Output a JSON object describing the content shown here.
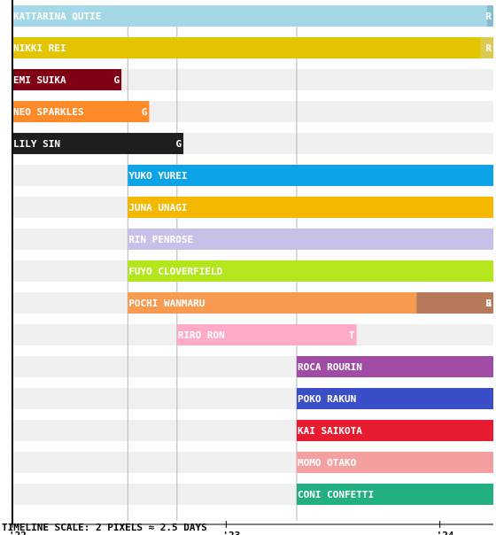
{
  "chart_data": {
    "type": "timeline",
    "x_unit": "month",
    "x_ticks": [
      {
        "label": "'22",
        "value": 2022.0
      },
      {
        "label": "'23",
        "value": 2023.0
      },
      {
        "label": "'24",
        "value": 2024.0
      }
    ],
    "xlim": [
      2022.0,
      2024.25
    ],
    "guides": [
      2022.54,
      2022.77,
      2023.33
    ],
    "rows": [
      {
        "name": "KATTARINA QUTIE",
        "start": 2022.0,
        "segments": [
          {
            "end": 2024.22,
            "color": "#a4d8e6",
            "text_color": "#ffffff"
          },
          {
            "end": 2024.25,
            "color": "#86bcd0",
            "text_color": "#ffffff",
            "marker": "R"
          }
        ]
      },
      {
        "name": "NIKKI REI",
        "start": 2022.0,
        "segments": [
          {
            "end": 2024.19,
            "color": "#e3c400",
            "text_color": "#ffffff"
          },
          {
            "end": 2024.25,
            "color": "#d9cc50",
            "text_color": "#ffffff",
            "marker": "R"
          }
        ]
      },
      {
        "name": "EMI SUIKA",
        "start": 2022.0,
        "segments": [
          {
            "end": 2022.51,
            "color": "#800016",
            "text_color": "#ffffff",
            "marker": "G"
          }
        ]
      },
      {
        "name": "NEO SPARKLES",
        "start": 2022.0,
        "segments": [
          {
            "end": 2022.64,
            "color": "#ff8a2a",
            "text_color": "#ffffff",
            "marker": "G"
          }
        ]
      },
      {
        "name": "LILY SIN",
        "start": 2022.0,
        "segments": [
          {
            "end": 2022.8,
            "color": "#1e1e1e",
            "text_color": "#ffffff",
            "marker": "G"
          }
        ]
      },
      {
        "name": "YUKO YUREI",
        "start": 2022.54,
        "segments": [
          {
            "end": 2024.25,
            "color": "#0ca4e6",
            "text_color": "#ffffff"
          }
        ]
      },
      {
        "name": "JUNA UNAGI",
        "start": 2022.54,
        "segments": [
          {
            "end": 2024.25,
            "color": "#f4b800",
            "text_color": "#ffffff"
          }
        ]
      },
      {
        "name": "RIN PENROSE",
        "start": 2022.54,
        "segments": [
          {
            "end": 2024.25,
            "color": "#c8c0e6",
            "text_color": "#ffffff"
          }
        ]
      },
      {
        "name": "FUYO CLOVERFIELD",
        "start": 2022.54,
        "segments": [
          {
            "end": 2024.25,
            "color": "#b4e61e",
            "text_color": "#ffffff"
          }
        ]
      },
      {
        "name": "POCHI WANMARU",
        "start": 2022.54,
        "segments": [
          {
            "end": 2023.89,
            "color": "#f89a50",
            "text_color": "#ffffff"
          },
          {
            "end": 2024.25,
            "color": "#b8785a",
            "text_color": "#ffffff",
            "marker": "R"
          }
        ],
        "end_marker": "G"
      },
      {
        "name": "RIRO RON",
        "start": 2022.77,
        "segments": [
          {
            "end": 2023.61,
            "color": "#ffaac6",
            "text_color": "#ffffff",
            "marker": "T"
          }
        ]
      },
      {
        "name": "ROCA ROURIN",
        "start": 2023.33,
        "segments": [
          {
            "end": 2024.25,
            "color": "#a04ca4",
            "text_color": "#ffffff"
          }
        ]
      },
      {
        "name": "POKO RAKUN",
        "start": 2023.33,
        "segments": [
          {
            "end": 2024.25,
            "color": "#3a4ec8",
            "text_color": "#ffffff"
          }
        ]
      },
      {
        "name": "KAI SAIKOTA",
        "start": 2023.33,
        "segments": [
          {
            "end": 2024.25,
            "color": "#e81c30",
            "text_color": "#ffffff"
          }
        ]
      },
      {
        "name": "MOMO OTAKO",
        "start": 2023.33,
        "segments": [
          {
            "end": 2024.25,
            "color": "#f4a0a0",
            "text_color": "#ffffff"
          }
        ]
      },
      {
        "name": "CONI CONFETTI",
        "start": 2023.33,
        "segments": [
          {
            "end": 2024.25,
            "color": "#22b082",
            "text_color": "#ffffff"
          }
        ]
      }
    ],
    "grid": true,
    "footer": "TIMELINE SCALE: 2 PIXELS ≈ 2.5 DAYS"
  }
}
